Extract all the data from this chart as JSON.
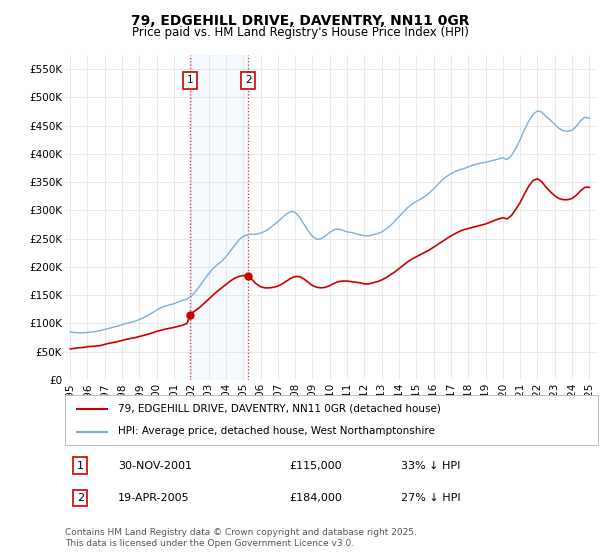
{
  "title": "79, EDGEHILL DRIVE, DAVENTRY, NN11 0GR",
  "subtitle": "Price paid vs. HM Land Registry's House Price Index (HPI)",
  "legend_line1": "79, EDGEHILL DRIVE, DAVENTRY, NN11 0GR (detached house)",
  "legend_line2": "HPI: Average price, detached house, West Northamptonshire",
  "footer": "Contains HM Land Registry data © Crown copyright and database right 2025.\nThis data is licensed under the Open Government Licence v3.0.",
  "ylim": [
    0,
    575000
  ],
  "yticks": [
    0,
    50000,
    100000,
    150000,
    200000,
    250000,
    300000,
    350000,
    400000,
    450000,
    500000,
    550000
  ],
  "ytick_labels": [
    "£0",
    "£50K",
    "£100K",
    "£150K",
    "£200K",
    "£250K",
    "£300K",
    "£350K",
    "£400K",
    "£450K",
    "£500K",
    "£550K"
  ],
  "hpi_color": "#7ab0d8",
  "price_color": "#cc0000",
  "sale1_date": 2001.92,
  "sale1_price": 115000,
  "sale1_label": "1",
  "sale2_date": 2005.29,
  "sale2_price": 184000,
  "sale2_label": "2",
  "background_color": "#ffffff",
  "grid_color": "#e0e0e0",
  "hpi_data": [
    [
      1995.0,
      85000
    ],
    [
      1995.25,
      84000
    ],
    [
      1995.5,
      83500
    ],
    [
      1995.75,
      83500
    ],
    [
      1996.0,
      84000
    ],
    [
      1996.25,
      85000
    ],
    [
      1996.5,
      86000
    ],
    [
      1996.75,
      87500
    ],
    [
      1997.0,
      89500
    ],
    [
      1997.25,
      91500
    ],
    [
      1997.5,
      93500
    ],
    [
      1997.75,
      95500
    ],
    [
      1998.0,
      98000
    ],
    [
      1998.25,
      100000
    ],
    [
      1998.5,
      102000
    ],
    [
      1998.75,
      104000
    ],
    [
      1999.0,
      107000
    ],
    [
      1999.25,
      110500
    ],
    [
      1999.5,
      114500
    ],
    [
      1999.75,
      119000
    ],
    [
      2000.0,
      124000
    ],
    [
      2000.25,
      128000
    ],
    [
      2000.5,
      131000
    ],
    [
      2000.75,
      133000
    ],
    [
      2001.0,
      135000
    ],
    [
      2001.25,
      138000
    ],
    [
      2001.5,
      141000
    ],
    [
      2001.75,
      143000
    ],
    [
      2002.0,
      148000
    ],
    [
      2002.25,
      157000
    ],
    [
      2002.5,
      167000
    ],
    [
      2002.75,
      178000
    ],
    [
      2003.0,
      188000
    ],
    [
      2003.25,
      197000
    ],
    [
      2003.5,
      204000
    ],
    [
      2003.75,
      210000
    ],
    [
      2004.0,
      218000
    ],
    [
      2004.25,
      228000
    ],
    [
      2004.5,
      238000
    ],
    [
      2004.75,
      248000
    ],
    [
      2005.0,
      254000
    ],
    [
      2005.25,
      257000
    ],
    [
      2005.5,
      258000
    ],
    [
      2005.75,
      258000
    ],
    [
      2006.0,
      260000
    ],
    [
      2006.25,
      263000
    ],
    [
      2006.5,
      268000
    ],
    [
      2006.75,
      274000
    ],
    [
      2007.0,
      280000
    ],
    [
      2007.25,
      287000
    ],
    [
      2007.5,
      294000
    ],
    [
      2007.75,
      298000
    ],
    [
      2008.0,
      297000
    ],
    [
      2008.25,
      288000
    ],
    [
      2008.5,
      276000
    ],
    [
      2008.75,
      264000
    ],
    [
      2009.0,
      254000
    ],
    [
      2009.25,
      249000
    ],
    [
      2009.5,
      250000
    ],
    [
      2009.75,
      255000
    ],
    [
      2010.0,
      261000
    ],
    [
      2010.25,
      266000
    ],
    [
      2010.5,
      267000
    ],
    [
      2010.75,
      265000
    ],
    [
      2011.0,
      262000
    ],
    [
      2011.25,
      261000
    ],
    [
      2011.5,
      259000
    ],
    [
      2011.75,
      257000
    ],
    [
      2012.0,
      255000
    ],
    [
      2012.25,
      255000
    ],
    [
      2012.5,
      257000
    ],
    [
      2012.75,
      259000
    ],
    [
      2013.0,
      262000
    ],
    [
      2013.25,
      267000
    ],
    [
      2013.5,
      273000
    ],
    [
      2013.75,
      281000
    ],
    [
      2014.0,
      289000
    ],
    [
      2014.25,
      297000
    ],
    [
      2014.5,
      305000
    ],
    [
      2014.75,
      311000
    ],
    [
      2015.0,
      316000
    ],
    [
      2015.25,
      320000
    ],
    [
      2015.5,
      325000
    ],
    [
      2015.75,
      331000
    ],
    [
      2016.0,
      338000
    ],
    [
      2016.25,
      346000
    ],
    [
      2016.5,
      354000
    ],
    [
      2016.75,
      360000
    ],
    [
      2017.0,
      365000
    ],
    [
      2017.25,
      369000
    ],
    [
      2017.5,
      372000
    ],
    [
      2017.75,
      374000
    ],
    [
      2018.0,
      377000
    ],
    [
      2018.25,
      380000
    ],
    [
      2018.5,
      382000
    ],
    [
      2018.75,
      384000
    ],
    [
      2019.0,
      385000
    ],
    [
      2019.25,
      387000
    ],
    [
      2019.5,
      389000
    ],
    [
      2019.75,
      391000
    ],
    [
      2020.0,
      393000
    ],
    [
      2020.25,
      390000
    ],
    [
      2020.5,
      397000
    ],
    [
      2020.75,
      410000
    ],
    [
      2021.0,
      425000
    ],
    [
      2021.25,
      443000
    ],
    [
      2021.5,
      458000
    ],
    [
      2021.75,
      470000
    ],
    [
      2022.0,
      476000
    ],
    [
      2022.25,
      474000
    ],
    [
      2022.5,
      466000
    ],
    [
      2022.75,
      460000
    ],
    [
      2023.0,
      452000
    ],
    [
      2023.25,
      445000
    ],
    [
      2023.5,
      441000
    ],
    [
      2023.75,
      440000
    ],
    [
      2024.0,
      442000
    ],
    [
      2024.25,
      449000
    ],
    [
      2024.5,
      459000
    ],
    [
      2024.75,
      465000
    ],
    [
      2025.0,
      463000
    ]
  ],
  "price_data": [
    [
      1995.0,
      55000
    ],
    [
      1995.25,
      56000
    ],
    [
      1995.5,
      57000
    ],
    [
      1995.75,
      57500
    ],
    [
      1996.0,
      59000
    ],
    [
      1996.25,
      59500
    ],
    [
      1996.5,
      60000
    ],
    [
      1996.75,
      61000
    ],
    [
      1997.0,
      63000
    ],
    [
      1997.25,
      65000
    ],
    [
      1997.5,
      66500
    ],
    [
      1997.75,
      68000
    ],
    [
      1998.0,
      70000
    ],
    [
      1998.25,
      72000
    ],
    [
      1998.5,
      73500
    ],
    [
      1998.75,
      75000
    ],
    [
      1999.0,
      77000
    ],
    [
      1999.25,
      79000
    ],
    [
      1999.5,
      81000
    ],
    [
      1999.75,
      83500
    ],
    [
      2000.0,
      86000
    ],
    [
      2000.25,
      88000
    ],
    [
      2000.5,
      90000
    ],
    [
      2000.75,
      91500
    ],
    [
      2001.0,
      93000
    ],
    [
      2001.25,
      95000
    ],
    [
      2001.5,
      97000
    ],
    [
      2001.75,
      100000
    ],
    [
      2001.92,
      115000
    ],
    [
      2002.0,
      118000
    ],
    [
      2002.25,
      123000
    ],
    [
      2002.5,
      129000
    ],
    [
      2002.75,
      136000
    ],
    [
      2003.0,
      143000
    ],
    [
      2003.25,
      150000
    ],
    [
      2003.5,
      157000
    ],
    [
      2003.75,
      163000
    ],
    [
      2004.0,
      169000
    ],
    [
      2004.25,
      175000
    ],
    [
      2004.5,
      180000
    ],
    [
      2004.75,
      183000
    ],
    [
      2005.0,
      185000
    ],
    [
      2005.29,
      184000
    ],
    [
      2005.5,
      178000
    ],
    [
      2005.75,
      170000
    ],
    [
      2006.0,
      165000
    ],
    [
      2006.25,
      163000
    ],
    [
      2006.5,
      163000
    ],
    [
      2006.75,
      164000
    ],
    [
      2007.0,
      166000
    ],
    [
      2007.25,
      170000
    ],
    [
      2007.5,
      175000
    ],
    [
      2007.75,
      180000
    ],
    [
      2008.0,
      183000
    ],
    [
      2008.25,
      183000
    ],
    [
      2008.5,
      179000
    ],
    [
      2008.75,
      173000
    ],
    [
      2009.0,
      167000
    ],
    [
      2009.25,
      164000
    ],
    [
      2009.5,
      163000
    ],
    [
      2009.75,
      164000
    ],
    [
      2010.0,
      167000
    ],
    [
      2010.25,
      171000
    ],
    [
      2010.5,
      174000
    ],
    [
      2010.75,
      175000
    ],
    [
      2011.0,
      175000
    ],
    [
      2011.25,
      174000
    ],
    [
      2011.5,
      173000
    ],
    [
      2011.75,
      172000
    ],
    [
      2012.0,
      170000
    ],
    [
      2012.25,
      170000
    ],
    [
      2012.5,
      172000
    ],
    [
      2012.75,
      174000
    ],
    [
      2013.0,
      177000
    ],
    [
      2013.25,
      181000
    ],
    [
      2013.5,
      186000
    ],
    [
      2013.75,
      191000
    ],
    [
      2014.0,
      197000
    ],
    [
      2014.25,
      203000
    ],
    [
      2014.5,
      209000
    ],
    [
      2014.75,
      214000
    ],
    [
      2015.0,
      218000
    ],
    [
      2015.25,
      222000
    ],
    [
      2015.5,
      226000
    ],
    [
      2015.75,
      230000
    ],
    [
      2016.0,
      235000
    ],
    [
      2016.25,
      240000
    ],
    [
      2016.5,
      245000
    ],
    [
      2016.75,
      250000
    ],
    [
      2017.0,
      255000
    ],
    [
      2017.25,
      259000
    ],
    [
      2017.5,
      263000
    ],
    [
      2017.75,
      266000
    ],
    [
      2018.0,
      268000
    ],
    [
      2018.25,
      270000
    ],
    [
      2018.5,
      272000
    ],
    [
      2018.75,
      274000
    ],
    [
      2019.0,
      276000
    ],
    [
      2019.25,
      279000
    ],
    [
      2019.5,
      282000
    ],
    [
      2019.75,
      285000
    ],
    [
      2020.0,
      287000
    ],
    [
      2020.25,
      285000
    ],
    [
      2020.5,
      291000
    ],
    [
      2020.75,
      302000
    ],
    [
      2021.0,
      314000
    ],
    [
      2021.25,
      329000
    ],
    [
      2021.5,
      343000
    ],
    [
      2021.75,
      353000
    ],
    [
      2022.0,
      356000
    ],
    [
      2022.25,
      351000
    ],
    [
      2022.5,
      341000
    ],
    [
      2022.75,
      333000
    ],
    [
      2023.0,
      326000
    ],
    [
      2023.25,
      321000
    ],
    [
      2023.5,
      319000
    ],
    [
      2023.75,
      319000
    ],
    [
      2024.0,
      321000
    ],
    [
      2024.25,
      327000
    ],
    [
      2024.5,
      335000
    ],
    [
      2024.75,
      341000
    ],
    [
      2025.0,
      341000
    ]
  ],
  "xtick_years": [
    1995,
    1996,
    1997,
    1998,
    1999,
    2000,
    2001,
    2002,
    2003,
    2004,
    2005,
    2006,
    2007,
    2008,
    2009,
    2010,
    2011,
    2012,
    2013,
    2014,
    2015,
    2016,
    2017,
    2018,
    2019,
    2020,
    2021,
    2022,
    2023,
    2024,
    2025
  ]
}
